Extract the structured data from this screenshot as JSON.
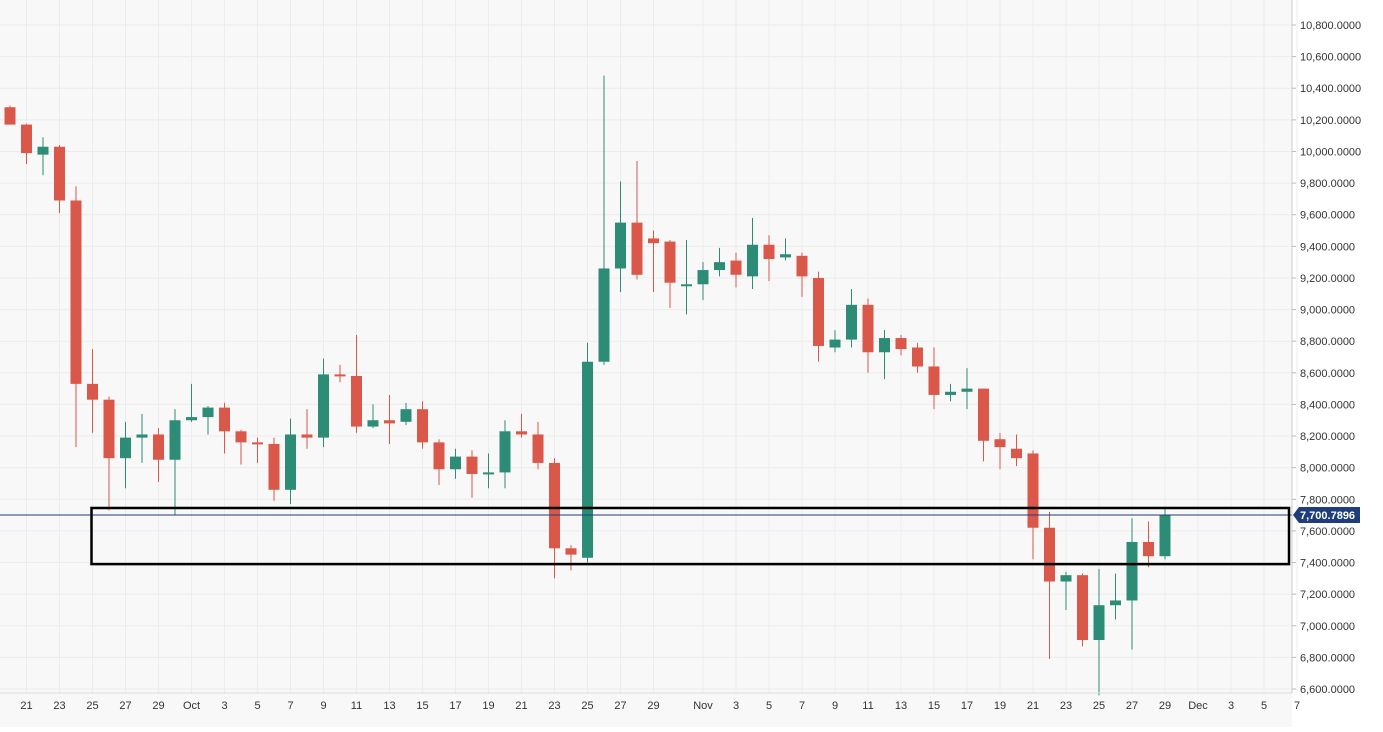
{
  "chart_data": {
    "type": "candlestick",
    "title": "",
    "xlabel": "",
    "ylabel": "",
    "ylim": [
      6560,
      10940
    ],
    "y_ticks": [
      "6,600.0000",
      "6,800.0000",
      "7,000.0000",
      "7,200.0000",
      "7,400.0000",
      "7,600.0000",
      "7,800.0000",
      "8,000.0000",
      "8,200.0000",
      "8,400.0000",
      "8,600.0000",
      "8,800.0000",
      "9,000.0000",
      "9,200.0000",
      "9,400.0000",
      "9,600.0000",
      "9,800.0000",
      "10,000.0000",
      "10,200.0000",
      "10,400.0000",
      "10,600.0000",
      "10,800.0000"
    ],
    "x_ticks": [
      {
        "label": "21",
        "day": -9
      },
      {
        "label": "23",
        "day": -7
      },
      {
        "label": "25",
        "day": -5
      },
      {
        "label": "27",
        "day": -3
      },
      {
        "label": "29",
        "day": -1
      },
      {
        "label": "Oct",
        "day": 1
      },
      {
        "label": "3",
        "day": 3
      },
      {
        "label": "5",
        "day": 5
      },
      {
        "label": "7",
        "day": 7
      },
      {
        "label": "9",
        "day": 9
      },
      {
        "label": "11",
        "day": 11
      },
      {
        "label": "13",
        "day": 13
      },
      {
        "label": "15",
        "day": 15
      },
      {
        "label": "17",
        "day": 17
      },
      {
        "label": "19",
        "day": 19
      },
      {
        "label": "21",
        "day": 21
      },
      {
        "label": "23",
        "day": 23
      },
      {
        "label": "25",
        "day": 25
      },
      {
        "label": "27",
        "day": 27
      },
      {
        "label": "29",
        "day": 29
      },
      {
        "label": "Nov",
        "day": 32
      },
      {
        "label": "3",
        "day": 34
      },
      {
        "label": "5",
        "day": 36
      },
      {
        "label": "7",
        "day": 38
      },
      {
        "label": "9",
        "day": 40
      },
      {
        "label": "11",
        "day": 42
      },
      {
        "label": "13",
        "day": 44
      },
      {
        "label": "15",
        "day": 46
      },
      {
        "label": "17",
        "day": 48
      },
      {
        "label": "19",
        "day": 50
      },
      {
        "label": "21",
        "day": 52
      },
      {
        "label": "23",
        "day": 54
      },
      {
        "label": "25",
        "day": 56
      },
      {
        "label": "27",
        "day": 58
      },
      {
        "label": "29",
        "day": 60
      },
      {
        "label": "Dec",
        "day": 62
      },
      {
        "label": "3",
        "day": 64
      },
      {
        "label": "5",
        "day": 66
      },
      {
        "label": "7",
        "day": 68
      }
    ],
    "candles": [
      {
        "day": -10,
        "o": 10280,
        "h": 10290,
        "c": 10170,
        "l": 10170
      },
      {
        "day": -9,
        "o": 10170,
        "h": 10175,
        "c": 9990,
        "l": 9920
      },
      {
        "day": -8,
        "o": 9980,
        "h": 10090,
        "c": 10030,
        "l": 9850
      },
      {
        "day": -7,
        "o": 10030,
        "h": 10040,
        "c": 9690,
        "l": 9610
      },
      {
        "day": -6,
        "o": 9690,
        "h": 9780,
        "c": 8530,
        "l": 8130
      },
      {
        "day": -5,
        "o": 8530,
        "h": 8750,
        "c": 8430,
        "l": 8220
      },
      {
        "day": -4,
        "o": 8430,
        "h": 8450,
        "c": 8060,
        "l": 7730
      },
      {
        "day": -3,
        "o": 8060,
        "h": 8290,
        "c": 8190,
        "l": 7870
      },
      {
        "day": -2,
        "o": 8190,
        "h": 8340,
        "c": 8210,
        "l": 8030
      },
      {
        "day": -1,
        "o": 8210,
        "h": 8250,
        "c": 8050,
        "l": 7910
      },
      {
        "day": 0,
        "o": 8050,
        "h": 8370,
        "c": 8300,
        "l": 7700
      },
      {
        "day": 1,
        "o": 8300,
        "h": 8530,
        "c": 8320,
        "l": 8290
      },
      {
        "day": 2,
        "o": 8320,
        "h": 8390,
        "c": 8380,
        "l": 8210
      },
      {
        "day": 3,
        "o": 8380,
        "h": 8410,
        "c": 8230,
        "l": 8090
      },
      {
        "day": 4,
        "o": 8230,
        "h": 8240,
        "c": 8160,
        "l": 8020
      },
      {
        "day": 5,
        "o": 8160,
        "h": 8190,
        "c": 8150,
        "l": 8030
      },
      {
        "day": 6,
        "o": 8150,
        "h": 8190,
        "c": 7860,
        "l": 7790
      },
      {
        "day": 7,
        "o": 7860,
        "h": 8310,
        "c": 8210,
        "l": 7770
      },
      {
        "day": 8,
        "o": 8210,
        "h": 8370,
        "c": 8190,
        "l": 8120
      },
      {
        "day": 9,
        "o": 8190,
        "h": 8690,
        "c": 8590,
        "l": 8130
      },
      {
        "day": 10,
        "o": 8590,
        "h": 8650,
        "c": 8580,
        "l": 8540
      },
      {
        "day": 11,
        "o": 8580,
        "h": 8840,
        "c": 8260,
        "l": 8220
      },
      {
        "day": 12,
        "o": 8260,
        "h": 8400,
        "c": 8300,
        "l": 8250
      },
      {
        "day": 13,
        "o": 8300,
        "h": 8460,
        "c": 8280,
        "l": 8150
      },
      {
        "day": 14,
        "o": 8290,
        "h": 8410,
        "c": 8370,
        "l": 8270
      },
      {
        "day": 15,
        "o": 8370,
        "h": 8420,
        "c": 8160,
        "l": 8120
      },
      {
        "day": 16,
        "o": 8160,
        "h": 8180,
        "c": 7990,
        "l": 7890
      },
      {
        "day": 17,
        "o": 7990,
        "h": 8120,
        "c": 8070,
        "l": 7930
      },
      {
        "day": 18,
        "o": 8070,
        "h": 8110,
        "c": 7960,
        "l": 7810
      },
      {
        "day": 19,
        "o": 7960,
        "h": 8090,
        "c": 7970,
        "l": 7870
      },
      {
        "day": 20,
        "o": 7970,
        "h": 8300,
        "c": 8230,
        "l": 7870
      },
      {
        "day": 21,
        "o": 8230,
        "h": 8340,
        "c": 8210,
        "l": 8190
      },
      {
        "day": 22,
        "o": 8210,
        "h": 8290,
        "c": 8030,
        "l": 7990
      },
      {
        "day": 23,
        "o": 8030,
        "h": 8060,
        "c": 7490,
        "l": 7300
      },
      {
        "day": 24,
        "o": 7490,
        "h": 7510,
        "c": 7450,
        "l": 7350
      },
      {
        "day": 25,
        "o": 7430,
        "h": 8790,
        "c": 8670,
        "l": 7400
      },
      {
        "day": 26,
        "o": 8670,
        "h": 10480,
        "c": 9260,
        "l": 8650
      },
      {
        "day": 27,
        "o": 9260,
        "h": 9810,
        "c": 9550,
        "l": 9110
      },
      {
        "day": 28,
        "o": 9550,
        "h": 9940,
        "c": 9220,
        "l": 9190
      },
      {
        "day": 29,
        "o": 9450,
        "h": 9500,
        "c": 9420,
        "l": 9110
      },
      {
        "day": 30,
        "o": 9430,
        "h": 9440,
        "c": 9170,
        "l": 9010
      },
      {
        "day": 31,
        "o": 9160,
        "h": 9440,
        "c": 9160,
        "l": 8970
      },
      {
        "day": 32,
        "o": 9160,
        "h": 9300,
        "c": 9250,
        "l": 9060
      },
      {
        "day": 33,
        "o": 9250,
        "h": 9390,
        "c": 9300,
        "l": 9210
      },
      {
        "day": 34,
        "o": 9310,
        "h": 9360,
        "c": 9220,
        "l": 9140
      },
      {
        "day": 35,
        "o": 9210,
        "h": 9580,
        "c": 9410,
        "l": 9130
      },
      {
        "day": 36,
        "o": 9410,
        "h": 9470,
        "c": 9320,
        "l": 9180
      },
      {
        "day": 37,
        "o": 9330,
        "h": 9450,
        "c": 9350,
        "l": 9310
      },
      {
        "day": 38,
        "o": 9340,
        "h": 9360,
        "c": 9210,
        "l": 9080
      },
      {
        "day": 39,
        "o": 9200,
        "h": 9240,
        "c": 8770,
        "l": 8670
      },
      {
        "day": 40,
        "o": 8760,
        "h": 8870,
        "c": 8810,
        "l": 8730
      },
      {
        "day": 41,
        "o": 8810,
        "h": 9130,
        "c": 9030,
        "l": 8760
      },
      {
        "day": 42,
        "o": 9030,
        "h": 9070,
        "c": 8730,
        "l": 8600
      },
      {
        "day": 43,
        "o": 8730,
        "h": 8870,
        "c": 8820,
        "l": 8560
      },
      {
        "day": 44,
        "o": 8820,
        "h": 8840,
        "c": 8750,
        "l": 8710
      },
      {
        "day": 45,
        "o": 8760,
        "h": 8790,
        "c": 8640,
        "l": 8600
      },
      {
        "day": 46,
        "o": 8640,
        "h": 8760,
        "c": 8460,
        "l": 8370
      },
      {
        "day": 47,
        "o": 8460,
        "h": 8530,
        "c": 8480,
        "l": 8420
      },
      {
        "day": 48,
        "o": 8480,
        "h": 8630,
        "c": 8500,
        "l": 8370
      },
      {
        "day": 49,
        "o": 8500,
        "h": 8500,
        "c": 8170,
        "l": 8040
      },
      {
        "day": 50,
        "o": 8180,
        "h": 8220,
        "c": 8130,
        "l": 7990
      },
      {
        "day": 51,
        "o": 8120,
        "h": 8210,
        "c": 8060,
        "l": 8010
      },
      {
        "day": 52,
        "o": 8090,
        "h": 8110,
        "c": 7620,
        "l": 7420
      },
      {
        "day": 53,
        "o": 7620,
        "h": 7720,
        "c": 7280,
        "l": 6790
      },
      {
        "day": 54,
        "o": 7280,
        "h": 7340,
        "c": 7320,
        "l": 7100
      },
      {
        "day": 55,
        "o": 7320,
        "h": 7330,
        "c": 6910,
        "l": 6870
      },
      {
        "day": 56,
        "o": 6910,
        "h": 7360,
        "c": 7130,
        "l": 6560
      },
      {
        "day": 57,
        "o": 7130,
        "h": 7330,
        "c": 7160,
        "l": 7040
      },
      {
        "day": 58,
        "o": 7160,
        "h": 7680,
        "c": 7530,
        "l": 6850
      },
      {
        "day": 59,
        "o": 7530,
        "h": 7660,
        "c": 7440,
        "l": 7370
      },
      {
        "day": 60,
        "o": 7440,
        "h": 7740,
        "c": 7701,
        "l": 7420
      }
    ],
    "current_price": {
      "value": 7700.7896,
      "label": "7,700.7896"
    },
    "zone": {
      "start_day": -5,
      "end_day": 64,
      "top": 7745,
      "bottom": 7390
    },
    "colors": {
      "up": "#2d8c76",
      "down": "#d9584a",
      "grid": "#ececec",
      "axis_text": "#333333",
      "price_line": "#1f3d7a",
      "price_tag": "#1f3d7a",
      "zone_border": "#000000"
    },
    "grid": true
  }
}
